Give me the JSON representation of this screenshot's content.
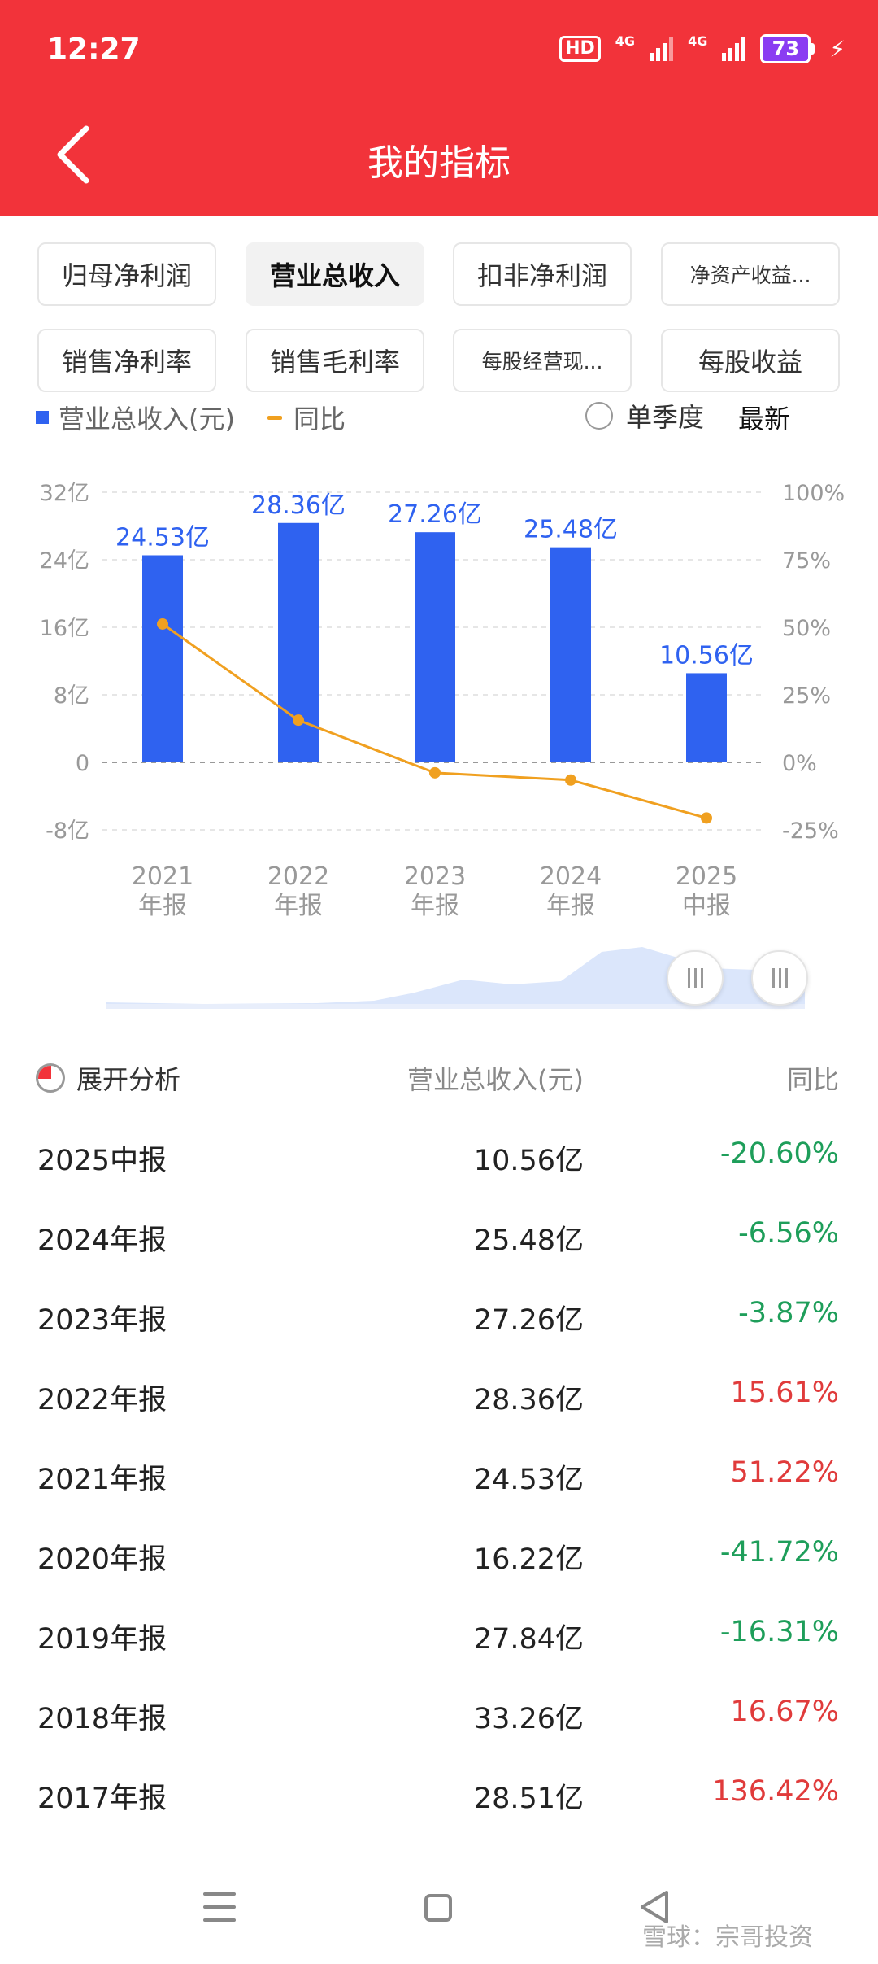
{
  "status_bar": {
    "time": "12:27",
    "hd": "HD",
    "network_1": "4G",
    "network_2": "4G",
    "battery": "73"
  },
  "header": {
    "title": "我的指标",
    "back_icon": "chevron-left-icon"
  },
  "metric_chips": [
    {
      "label": "归母净利润",
      "active": false
    },
    {
      "label": "营业总收入",
      "active": true
    },
    {
      "label": "扣非净利润",
      "active": false
    },
    {
      "label": "净资产收益...",
      "active": false
    },
    {
      "label": "销售净利率",
      "active": false
    },
    {
      "label": "销售毛利率",
      "active": false
    },
    {
      "label": "每股经营现...",
      "active": false
    },
    {
      "label": "每股收益",
      "active": false
    }
  ],
  "legend": {
    "bar": "营业总收入(元)",
    "line": "同比",
    "single_quarter": "单季度",
    "latest": "最新"
  },
  "colors": {
    "header": "#f2333a",
    "bar": "#2f62f0",
    "line": "#f0a020",
    "up": "#e03b3b",
    "down": "#1e9e5a"
  },
  "chart_data": {
    "type": "bar",
    "categories": [
      [
        "2021",
        "年报"
      ],
      [
        "2022",
        "年报"
      ],
      [
        "2023",
        "年报"
      ],
      [
        "2024",
        "年报"
      ],
      [
        "2025",
        "中报"
      ]
    ],
    "series": [
      {
        "name": "营业总收入(元)",
        "type": "bar",
        "unit": "亿",
        "values": [
          24.53,
          28.36,
          27.26,
          25.48,
          10.56
        ],
        "labels": [
          "24.53亿",
          "28.36亿",
          "27.26亿",
          "25.48亿",
          "10.56亿"
        ]
      },
      {
        "name": "同比",
        "type": "line",
        "unit": "%",
        "values": [
          51.22,
          15.61,
          -3.87,
          -6.56,
          -20.6
        ]
      }
    ],
    "y_left": {
      "ticks": [
        "32亿",
        "24亿",
        "16亿",
        "8亿",
        "0",
        "-8亿"
      ],
      "range": [
        -8,
        32
      ]
    },
    "y_right": {
      "ticks": [
        "100%",
        "75%",
        "50%",
        "25%",
        "0%",
        "-25%"
      ],
      "range": [
        -25,
        100
      ]
    },
    "grid": "dashed zero line"
  },
  "table": {
    "expand_label": "展开分析",
    "col_value": "营业总收入(元)",
    "col_yoy": "同比",
    "rows": [
      {
        "period": "2025中报",
        "value": "10.56亿",
        "yoy": "-20.60%",
        "dir": "down"
      },
      {
        "period": "2024年报",
        "value": "25.48亿",
        "yoy": "-6.56%",
        "dir": "down"
      },
      {
        "period": "2023年报",
        "value": "27.26亿",
        "yoy": "-3.87%",
        "dir": "down"
      },
      {
        "period": "2022年报",
        "value": "28.36亿",
        "yoy": "15.61%",
        "dir": "up"
      },
      {
        "period": "2021年报",
        "value": "24.53亿",
        "yoy": "51.22%",
        "dir": "up"
      },
      {
        "period": "2020年报",
        "value": "16.22亿",
        "yoy": "-41.72%",
        "dir": "down"
      },
      {
        "period": "2019年报",
        "value": "27.84亿",
        "yoy": "-16.31%",
        "dir": "down"
      },
      {
        "period": "2018年报",
        "value": "33.26亿",
        "yoy": "16.67%",
        "dir": "up"
      },
      {
        "period": "2017年报",
        "value": "28.51亿",
        "yoy": "136.42%",
        "dir": "up"
      }
    ]
  },
  "watermark": "雪球：宗哥投资"
}
